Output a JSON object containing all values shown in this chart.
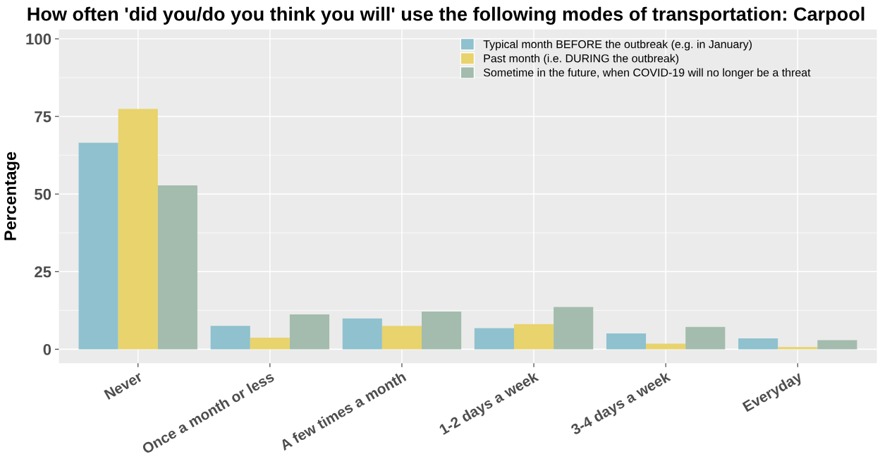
{
  "chart_data": {
    "type": "bar",
    "title": "How often 'did you/do you think you will' use the following modes of transportation: Carpool",
    "ylabel": "Percentage",
    "categories": [
      "Never",
      "Once a month or less",
      "A few times a month",
      "1-2 days a week",
      "3-4 days a week",
      "Everyday"
    ],
    "series": [
      {
        "name": "Typical month BEFORE the outbreak (e.g. in January)",
        "color": "#8fc1ce",
        "values": [
          66.5,
          7.5,
          9.9,
          6.8,
          5.1,
          3.5
        ]
      },
      {
        "name": "Past month (i.e. DURING the outbreak)",
        "color": "#e8d36c",
        "values": [
          77.4,
          3.7,
          7.5,
          8.1,
          1.8,
          0.7
        ]
      },
      {
        "name": "Sometime in the future, when COVID-19 will no longer be a threat",
        "color": "#a3bcad",
        "values": [
          52.8,
          11.2,
          12.1,
          13.6,
          7.2,
          2.9
        ]
      }
    ],
    "ylim": [
      -4.5,
      103
    ],
    "yticks": [
      0,
      25,
      50,
      75,
      100
    ],
    "grid": true,
    "legend": "top right"
  }
}
